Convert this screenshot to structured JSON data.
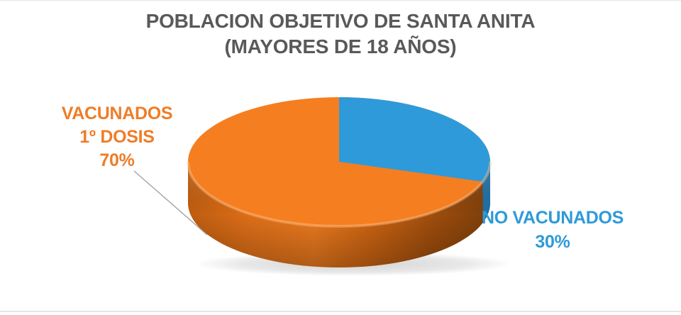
{
  "chart_data": {
    "type": "pie",
    "style": "3d",
    "title_lines": [
      "POBLACION OBJETIVO DE SANTA ANITA",
      "(MAYORES DE 18 AÑOS)"
    ],
    "slices": [
      {
        "label": "VACUNADOS 1º DOSIS",
        "value": 70,
        "unit": "%",
        "color": "#F57E20"
      },
      {
        "label": "NO VACUNADOS",
        "value": 30,
        "unit": "%",
        "color": "#2E9AD9"
      }
    ],
    "start_angle_deg": 0,
    "direction": "clockwise",
    "legend": "none",
    "labels_outside": true
  },
  "title": {
    "line1": "POBLACION OBJETIVO DE SANTA ANITA",
    "line2": "(MAYORES DE 18 AÑOS)"
  },
  "labels": {
    "vacunados": {
      "line1": "VACUNADOS",
      "line2": "1º DOSIS",
      "line3": "70%",
      "color": "#EE7D28"
    },
    "no_vacunados": {
      "line1": "NO VACUNADOS",
      "line2": "30%",
      "color": "#2E9AD9"
    }
  },
  "colors": {
    "title_text": "#595959",
    "orange": "#F57E20",
    "blue": "#2E9AD9",
    "blue_rim": "#1F6FA4",
    "leader_line": "#9E9E9E",
    "background": "#FFFFFF",
    "edge_line": "#E6E6E6"
  }
}
